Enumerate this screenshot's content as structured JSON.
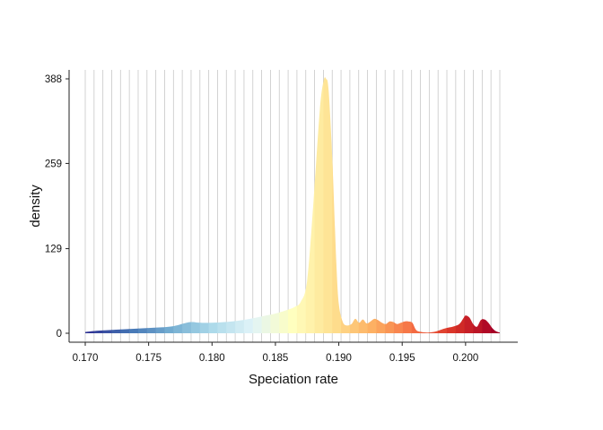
{
  "chart_data": {
    "type": "area",
    "title": "",
    "xlabel": "Speciation rate",
    "ylabel": "density",
    "xlim": [
      0.17,
      0.2027
    ],
    "ylim": [
      0,
      388
    ],
    "x_ticks": [
      "0.170",
      "0.175",
      "0.180",
      "0.185",
      "0.190",
      "0.195",
      "0.200"
    ],
    "x_tick_values": [
      0.17,
      0.175,
      0.18,
      0.185,
      0.19,
      0.195,
      0.2
    ],
    "y_ticks": [
      "0",
      "129",
      "259",
      "388"
    ],
    "y_tick_values": [
      0,
      129,
      259,
      388
    ],
    "grid": "vertical lines at each color band boundary",
    "legend": "none",
    "fill_palette": [
      "#313695",
      "#4575b4",
      "#74add1",
      "#abd9e9",
      "#e0f3f8",
      "#ffffbf",
      "#fee090",
      "#fdae61",
      "#f46d43",
      "#d73027",
      "#a50026"
    ],
    "series": [
      {
        "x": [
          0.17,
          0.171,
          0.172,
          0.173,
          0.174,
          0.175,
          0.176,
          0.177,
          0.178,
          0.1785,
          0.179,
          0.18,
          0.181,
          0.182,
          0.183,
          0.184,
          0.185,
          0.186,
          0.1865,
          0.187,
          0.1875,
          0.188,
          0.1885,
          0.1888,
          0.189,
          0.1892,
          0.1895,
          0.1898,
          0.19,
          0.1903,
          0.1906,
          0.191,
          0.1913,
          0.1916,
          0.1919,
          0.1922,
          0.1925,
          0.1928,
          0.1931,
          0.1934,
          0.1937,
          0.194,
          0.1943,
          0.1946,
          0.1949,
          0.1952,
          0.1955,
          0.1958,
          0.1961,
          0.1965,
          0.197,
          0.1975,
          0.198,
          0.1985,
          0.199,
          0.1995,
          0.1998,
          0.2,
          0.2003,
          0.2006,
          0.2009,
          0.2012,
          0.2015,
          0.2018,
          0.2021,
          0.2024,
          0.2027
        ],
        "y": [
          2,
          4,
          5,
          6,
          7,
          8,
          9,
          11,
          16,
          17,
          16,
          16,
          17,
          19,
          22,
          26,
          30,
          36,
          40,
          48,
          80,
          200,
          340,
          385,
          388,
          370,
          260,
          110,
          45,
          18,
          12,
          14,
          22,
          16,
          21,
          15,
          18,
          22,
          20,
          16,
          14,
          18,
          17,
          14,
          16,
          18,
          18,
          16,
          5,
          2,
          1,
          2,
          5,
          8,
          10,
          14,
          22,
          27,
          24,
          14,
          10,
          20,
          21,
          16,
          8,
          3,
          1
        ]
      }
    ]
  }
}
